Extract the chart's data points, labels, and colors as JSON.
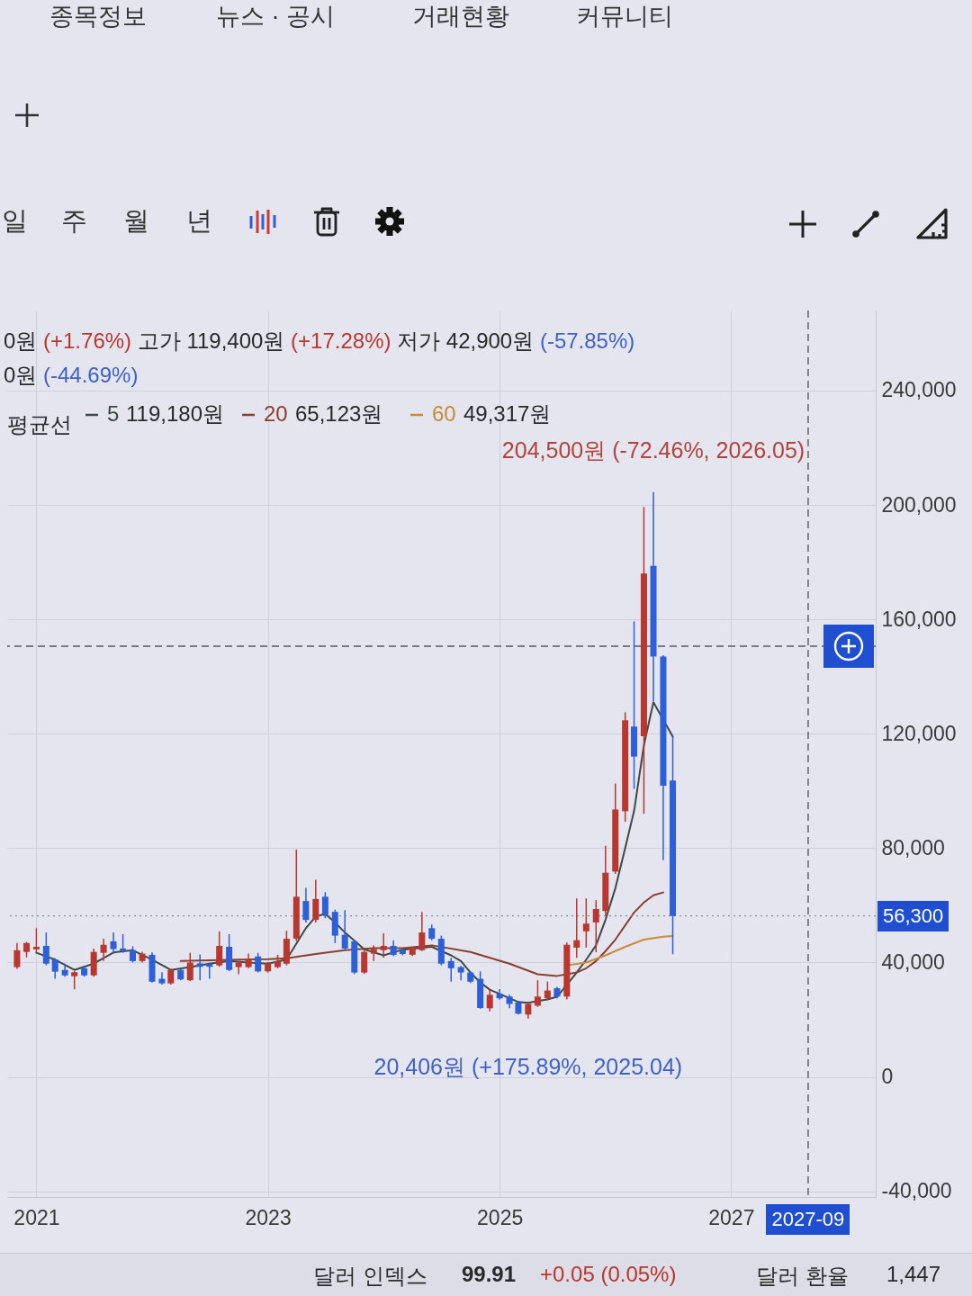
{
  "chart_data": {
    "type": "candlestick",
    "x": [
      "2020-11",
      "2020-12",
      "2021-01",
      "2021-02",
      "2021-03",
      "2021-04",
      "2021-05",
      "2021-06",
      "2021-07",
      "2021-08",
      "2021-09",
      "2021-10",
      "2021-11",
      "2021-12",
      "2022-01",
      "2022-02",
      "2022-03",
      "2022-04",
      "2022-05",
      "2022-06",
      "2022-07",
      "2022-08",
      "2022-09",
      "2022-10",
      "2022-11",
      "2022-12",
      "2023-01",
      "2023-02",
      "2023-03",
      "2023-04",
      "2023-05",
      "2023-06",
      "2023-07",
      "2023-08",
      "2023-09",
      "2023-10",
      "2023-11",
      "2023-12",
      "2024-01",
      "2024-02",
      "2024-03",
      "2024-04",
      "2024-05",
      "2024-06",
      "2024-07",
      "2024-08",
      "2024-09",
      "2024-10",
      "2024-11",
      "2024-12",
      "2025-01",
      "2025-02",
      "2025-03",
      "2025-04",
      "2025-05",
      "2025-06",
      "2025-07",
      "2025-08",
      "2025-09",
      "2025-10",
      "2025-11",
      "2025-12",
      "2026-01",
      "2026-02",
      "2026-03",
      "2026-04",
      "2026-05",
      "2026-06",
      "2026-07"
    ],
    "ohlc": [
      [
        38400,
        46800,
        37800,
        44300
      ],
      [
        43700,
        47200,
        41800,
        46800
      ],
      [
        44600,
        52000,
        43400,
        45500
      ],
      [
        45800,
        50500,
        39000,
        39600
      ],
      [
        41100,
        41500,
        34300,
        36800
      ],
      [
        37400,
        39600,
        35000,
        35500
      ],
      [
        35200,
        37000,
        30600,
        36600
      ],
      [
        38000,
        38500,
        35000,
        35500
      ],
      [
        35500,
        44900,
        35000,
        43700
      ],
      [
        43400,
        48300,
        40500,
        46200
      ],
      [
        47400,
        50500,
        43100,
        44700
      ],
      [
        44900,
        49900,
        43400,
        44000
      ],
      [
        44300,
        45700,
        40000,
        40500
      ],
      [
        40500,
        43800,
        40000,
        43100
      ],
      [
        42700,
        43500,
        33000,
        33300
      ],
      [
        34300,
        36600,
        32300,
        32700
      ],
      [
        32700,
        37800,
        32300,
        37400
      ],
      [
        37400,
        37800,
        33800,
        34100
      ],
      [
        33800,
        43400,
        33500,
        40000
      ],
      [
        39700,
        42800,
        33800,
        38500
      ],
      [
        39500,
        40000,
        34300,
        38500
      ],
      [
        39000,
        50900,
        38500,
        45800
      ],
      [
        45500,
        49900,
        37000,
        37400
      ],
      [
        38400,
        40300,
        35900,
        40000
      ],
      [
        38400,
        43100,
        38000,
        41100
      ],
      [
        42100,
        43400,
        36500,
        36900
      ],
      [
        36900,
        40200,
        36500,
        39700
      ],
      [
        38400,
        42700,
        38000,
        40500
      ],
      [
        39600,
        51100,
        39000,
        48300
      ],
      [
        48300,
        79500,
        47500,
        63000
      ],
      [
        61500,
        66100,
        54000,
        54900
      ],
      [
        54900,
        68900,
        54000,
        62200
      ],
      [
        63000,
        64600,
        55500,
        56700
      ],
      [
        57700,
        58500,
        46800,
        49400
      ],
      [
        49700,
        58300,
        44500,
        44900
      ],
      [
        47400,
        48000,
        36000,
        36500
      ],
      [
        36500,
        44300,
        36000,
        43700
      ],
      [
        43100,
        46000,
        40500,
        44700
      ],
      [
        44300,
        50200,
        41600,
        45800
      ],
      [
        45800,
        47700,
        42300,
        42700
      ],
      [
        44300,
        45000,
        42500,
        43000
      ],
      [
        42700,
        45500,
        42300,
        45200
      ],
      [
        44300,
        57700,
        44000,
        50500
      ],
      [
        52000,
        53300,
        47800,
        48300
      ],
      [
        48300,
        49400,
        39000,
        39600
      ],
      [
        40500,
        41600,
        33300,
        38000
      ],
      [
        38400,
        38800,
        33800,
        36500
      ],
      [
        36500,
        37000,
        32800,
        33300
      ],
      [
        34300,
        36900,
        23800,
        24100
      ],
      [
        24000,
        30700,
        22900,
        28700
      ],
      [
        29100,
        30700,
        27000,
        27500
      ],
      [
        28100,
        28800,
        24000,
        25500
      ],
      [
        26000,
        26500,
        21800,
        22100
      ],
      [
        21800,
        26000,
        20406,
        25500
      ],
      [
        24900,
        33800,
        24500,
        28100
      ],
      [
        27500,
        33300,
        27000,
        30200
      ],
      [
        31000,
        31500,
        27500,
        28100
      ],
      [
        28100,
        47000,
        27100,
        46200
      ],
      [
        45200,
        62400,
        41600,
        47800
      ],
      [
        50900,
        62400,
        45200,
        53600
      ],
      [
        54000,
        61800,
        43600,
        58700
      ],
      [
        58000,
        80800,
        56500,
        71400
      ],
      [
        71800,
        102600,
        71000,
        93500
      ],
      [
        92900,
        127500,
        89200,
        124700
      ],
      [
        122500,
        159300,
        100700,
        112000
      ],
      [
        119100,
        199300,
        92000,
        176000
      ],
      [
        178700,
        204500,
        131400,
        147000
      ],
      [
        147000,
        147500,
        75800,
        101800
      ],
      [
        103600,
        119400,
        42900,
        56300
      ]
    ],
    "colors": [
      "#b8372f",
      "#b8372f",
      "#b8372f",
      "#2c5fd8",
      "#2c5fd8",
      "#2c5fd8",
      "#b8372f",
      "#2c5fd8",
      "#b8372f",
      "#b8372f",
      "#2c5fd8",
      "#2c5fd8",
      "#2c5fd8",
      "#b8372f",
      "#2c5fd8",
      "#2c5fd8",
      "#b8372f",
      "#2c5fd8",
      "#b8372f",
      "#2c5fd8",
      "#2c5fd8",
      "#b8372f",
      "#2c5fd8",
      "#b8372f",
      "#b8372f",
      "#2c5fd8",
      "#b8372f",
      "#b8372f",
      "#b8372f",
      "#b8372f",
      "#2c5fd8",
      "#b8372f",
      "#2c5fd8",
      "#2c5fd8",
      "#2c5fd8",
      "#2c5fd8",
      "#b8372f",
      "#b8372f",
      "#b8372f",
      "#2c5fd8",
      "#2c5fd8",
      "#b8372f",
      "#b8372f",
      "#2c5fd8",
      "#2c5fd8",
      "#2c5fd8",
      "#2c5fd8",
      "#2c5fd8",
      "#2c5fd8",
      "#b8372f",
      "#2c5fd8",
      "#2c5fd8",
      "#2c5fd8",
      "#b8372f",
      "#b8372f",
      "#b8372f",
      "#2c5fd8",
      "#b8372f",
      "#b8372f",
      "#b8372f",
      "#b8372f",
      "#b8372f",
      "#b8372f",
      "#b8372f",
      "#2c5fd8",
      "#b8372f",
      "#2c5fd8",
      "#2c5fd8",
      "#2c5fd8"
    ],
    "series": [
      {
        "type": "line",
        "name": "5",
        "color": "#3d4a45",
        "x": [
          "2021-01",
          "2021-03",
          "2021-05",
          "2021-07",
          "2021-09",
          "2021-11",
          "2022-01",
          "2022-03",
          "2022-05",
          "2022-07",
          "2022-09",
          "2022-11",
          "2023-01",
          "2023-03",
          "2023-05",
          "2023-06",
          "2023-07",
          "2023-08",
          "2023-09",
          "2023-11",
          "2024-01",
          "2024-03",
          "2024-06",
          "2024-07",
          "2024-08",
          "2024-09",
          "2024-10",
          "2024-11",
          "2024-12",
          "2025-01",
          "2025-02",
          "2025-03",
          "2025-04",
          "2025-05",
          "2025-06",
          "2025-07",
          "2025-09",
          "2025-10",
          "2025-11",
          "2025-12",
          "2026-01",
          "2026-02",
          "2026-03",
          "2026-04",
          "2026-05",
          "2026-07"
        ],
        "values": [
          43400,
          41000,
          37400,
          39600,
          43500,
          44300,
          41000,
          37400,
          38400,
          39600,
          40500,
          40000,
          39600,
          41000,
          52000,
          56100,
          57000,
          54000,
          50500,
          44600,
          42500,
          44500,
          45500,
          44000,
          42500,
          40500,
          36500,
          33000,
          30500,
          29000,
          27500,
          26200,
          25900,
          26500,
          27100,
          28000,
          36500,
          41000,
          46000,
          55000,
          66000,
          80000,
          93000,
          116000,
          131000,
          119000
        ]
      },
      {
        "type": "line",
        "name": "20",
        "color": "#8b3f2f",
        "x": [
          "2022-04",
          "2022-07",
          "2022-10",
          "2023-01",
          "2023-03",
          "2023-06",
          "2023-09",
          "2023-12",
          "2024-03",
          "2024-06",
          "2024-10",
          "2025-02",
          "2025-05",
          "2025-07",
          "2025-09",
          "2025-10",
          "2025-11",
          "2025-12",
          "2026-01",
          "2026-02",
          "2026-03",
          "2026-04",
          "2026-05",
          "2026-06"
        ],
        "values": [
          40500,
          40800,
          41000,
          41200,
          41500,
          43000,
          44300,
          45000,
          45000,
          46000,
          43700,
          39600,
          35900,
          35300,
          36500,
          38000,
          40500,
          44000,
          48000,
          53000,
          57500,
          61000,
          63500,
          64500
        ]
      },
      {
        "type": "line",
        "name": "60",
        "color": "#c98a3a",
        "x": [
          "2025-08",
          "2025-10",
          "2025-12",
          "2026-02",
          "2026-04",
          "2026-06",
          "2026-07"
        ],
        "values": [
          39000,
          40000,
          42500,
          45500,
          48000,
          49000,
          49300
        ]
      }
    ],
    "xlim": [
      "2020-10",
      "2028-04"
    ],
    "xticks": [
      "2021",
      "2023",
      "2025",
      "2027"
    ],
    "ylim": [
      -42000,
      268000
    ],
    "yticks": [
      {
        "value": -40000,
        "label": "-40,000"
      },
      {
        "value": 0,
        "label": "0"
      },
      {
        "value": 40000,
        "label": "40,000"
      },
      {
        "value": 80000,
        "label": "80,000"
      },
      {
        "value": 120000,
        "label": "120,000"
      },
      {
        "value": 160000,
        "label": "160,000"
      },
      {
        "value": 200000,
        "label": "200,000"
      },
      {
        "value": 240000,
        "label": "240,000"
      }
    ],
    "grid": true,
    "legend": "top left",
    "legend_title": "평균선",
    "ref_lines": [
      {
        "axis": "y",
        "value": 56300,
        "label": "56,300",
        "line_style": "dotted",
        "color": "#8a8d99"
      },
      {
        "axis": "y",
        "value": 150600,
        "line_style": "dashed",
        "color": "#555a66"
      },
      {
        "axis": "x",
        "value": "2027-09",
        "label": "2027-09",
        "line_style": "dashed",
        "color": "#555a66"
      }
    ],
    "annotations": [
      "종목정보",
      "뉴스 · 공시",
      "거래현황",
      "커뮤니티",
      "일",
      "주",
      "월",
      "년",
      "0원 (+1.76%) 고가 119,400원 (+17.28%) 저가 42,900원 (-57.85%)",
      "0원 (-44.69%)",
      "119,180원",
      "65,123원",
      "49,317원",
      {
        "text": "204,500원 (-72.46%, 2026.05)",
        "x": "2026-05",
        "y": 204500
      },
      {
        "text": "20,406원 (+175.89%, 2025.04)",
        "x": "2025-04",
        "y": 20406
      },
      "달러 인덱스",
      "99.91",
      "+0.05 (0.05%)",
      "달러 환율",
      "1,447"
    ]
  }
}
